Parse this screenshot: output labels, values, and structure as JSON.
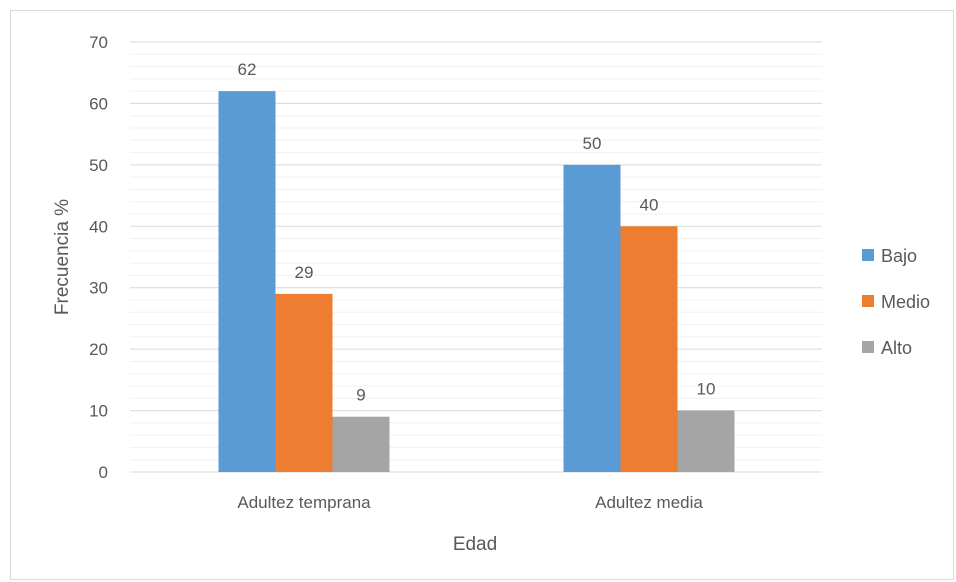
{
  "chart_data": {
    "type": "bar",
    "title": "",
    "xlabel": "Edad",
    "ylabel": "Frecuencia %",
    "categories": [
      "Adultez temprana",
      "Adultez media"
    ],
    "series": [
      {
        "name": "Bajo",
        "values": [
          62,
          50
        ],
        "color": "#5b9bd5"
      },
      {
        "name": "Medio",
        "values": [
          29,
          40
        ],
        "color": "#ed7d31"
      },
      {
        "name": "Alto",
        "values": [
          9,
          10
        ],
        "color": "#a5a5a5"
      }
    ],
    "ylim": [
      0,
      70
    ],
    "yticks": [
      0,
      10,
      20,
      30,
      40,
      50,
      60,
      70
    ],
    "grid": true,
    "legend_position": "right"
  }
}
